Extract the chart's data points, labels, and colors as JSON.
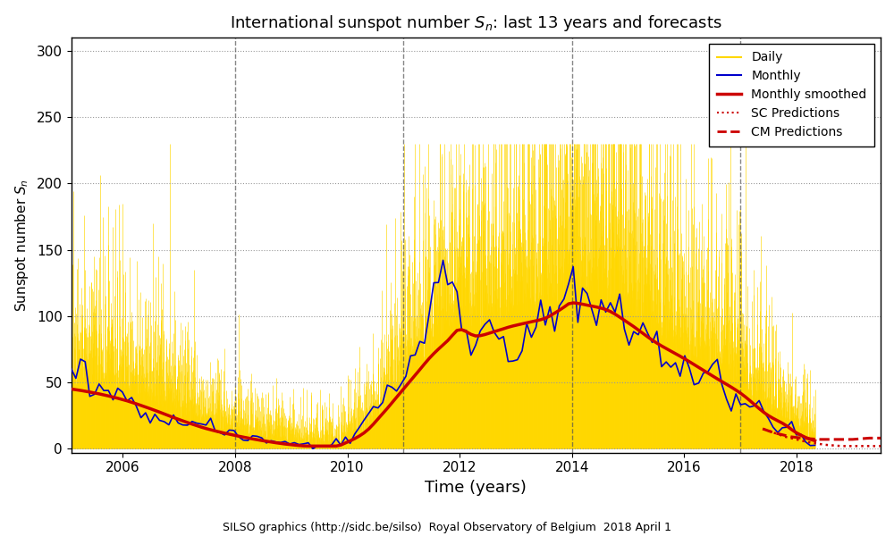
{
  "title": "International sunspot number $S_{n}$: last 13 years and forecasts",
  "xlabel": "Time (years)",
  "ylabel": "Sunspot number $S_{n}$",
  "footer": "SILSO graphics (http://sidc.be/silso)  Royal Observatory of Belgium  2018 April 1",
  "xlim": [
    2005.08,
    2019.5
  ],
  "ylim": [
    -3,
    310
  ],
  "yticks": [
    0,
    50,
    100,
    150,
    200,
    250,
    300
  ],
  "xticks": [
    2006,
    2008,
    2010,
    2012,
    2014,
    2016,
    2018
  ],
  "bg_color": "#ffffff",
  "grid_color": "#999999",
  "daily_color": "#FFD700",
  "monthly_color": "#0000CC",
  "smoothed_color": "#CC0000",
  "pred_sc_color": "#CC0000",
  "pred_cm_color": "#CC0000",
  "vline_color": "#555555",
  "vlines": [
    2008.0,
    2011.0,
    2014.0,
    2017.0
  ]
}
